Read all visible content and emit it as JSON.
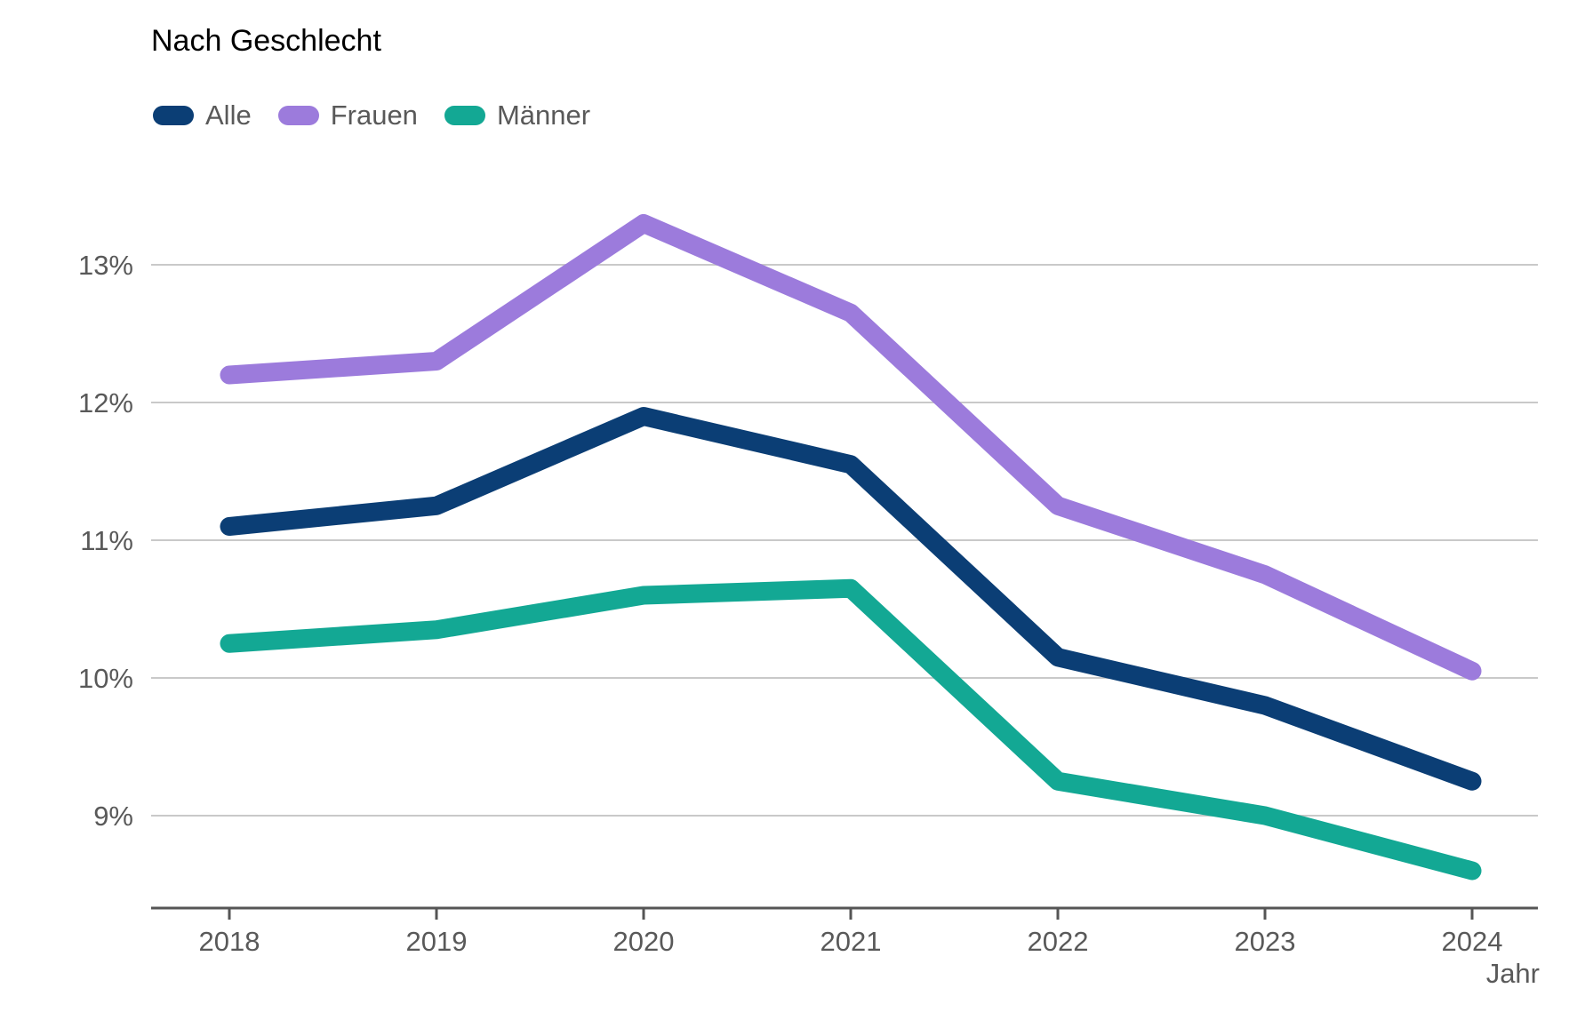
{
  "chart": {
    "title": "Nach Geschlecht",
    "x_axis_label": "Jahr"
  },
  "chart_data": {
    "type": "line",
    "title": "Nach Geschlecht",
    "categories": [
      "2018",
      "2019",
      "2020",
      "2021",
      "2022",
      "2023",
      "2024"
    ],
    "series": [
      {
        "name": "Alle",
        "color": "#0b3e75",
        "values": [
          11.1,
          11.25,
          11.9,
          11.55,
          10.15,
          9.8,
          9.25
        ]
      },
      {
        "name": "Frauen",
        "color": "#9c7bdc",
        "values": [
          12.2,
          12.3,
          13.3,
          12.65,
          11.25,
          10.75,
          10.05
        ]
      },
      {
        "name": "Männer",
        "color": "#13a894",
        "values": [
          10.25,
          10.35,
          10.6,
          10.65,
          9.25,
          9.0,
          8.6
        ]
      }
    ],
    "xlabel": "Jahr",
    "ylabel": "",
    "y_ticks": [
      9,
      10,
      11,
      12,
      13
    ],
    "y_tick_suffix": "%",
    "ylim": [
      8.33,
      13.55
    ],
    "grid": true,
    "legend_position": "top-left",
    "styles": {
      "grid_color": "#c9c9c9",
      "axis_color": "#555555",
      "tick_text_color": "#595959",
      "line_width": 21
    }
  }
}
